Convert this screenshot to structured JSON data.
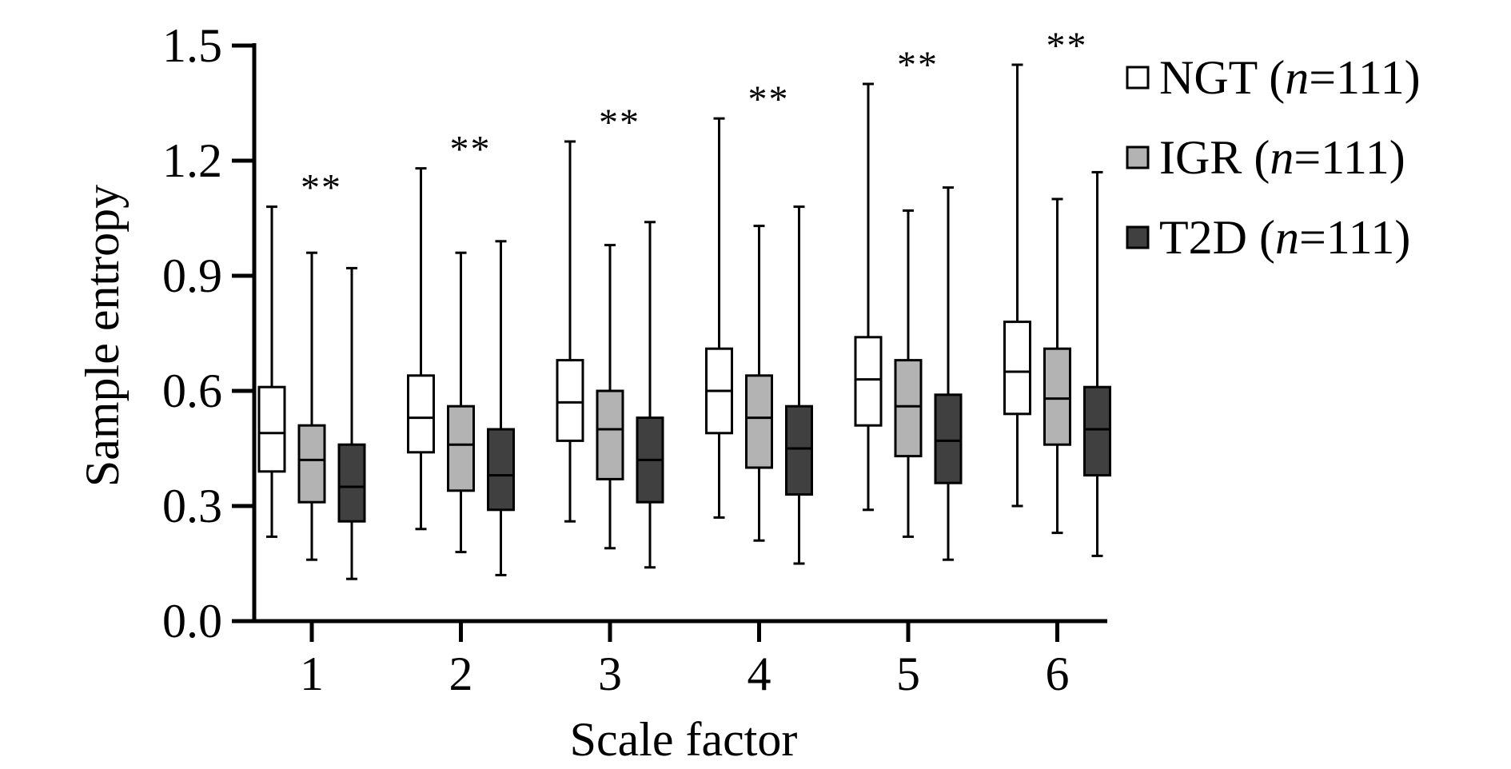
{
  "chart_data": {
    "type": "boxplot",
    "title": "",
    "xlabel": "Scale factor",
    "ylabel": "Sample entropy",
    "ylim": [
      0,
      1.5
    ],
    "yticks": [
      "0.0",
      "0.3",
      "0.6",
      "0.9",
      "1.2",
      "1.5"
    ],
    "categories": [
      "1",
      "2",
      "3",
      "4",
      "5",
      "6"
    ],
    "significance": [
      "**",
      "**",
      "**",
      "**",
      "**",
      "**"
    ],
    "legend_position": "top-right",
    "series": [
      {
        "name": "NGT",
        "n_label": "n",
        "n_value": "=111)",
        "color": "#ffffff",
        "boxes": [
          {
            "min": 0.22,
            "q1": 0.39,
            "median": 0.49,
            "q3": 0.61,
            "max": 1.08
          },
          {
            "min": 0.24,
            "q1": 0.44,
            "median": 0.53,
            "q3": 0.64,
            "max": 1.18
          },
          {
            "min": 0.26,
            "q1": 0.47,
            "median": 0.57,
            "q3": 0.68,
            "max": 1.25
          },
          {
            "min": 0.27,
            "q1": 0.49,
            "median": 0.6,
            "q3": 0.71,
            "max": 1.31
          },
          {
            "min": 0.29,
            "q1": 0.51,
            "median": 0.63,
            "q3": 0.74,
            "max": 1.4
          },
          {
            "min": 0.3,
            "q1": 0.54,
            "median": 0.65,
            "q3": 0.78,
            "max": 1.45
          }
        ]
      },
      {
        "name": "IGR",
        "n_label": "n",
        "n_value": "=111)",
        "color": "#b3b3b3",
        "boxes": [
          {
            "min": 0.16,
            "q1": 0.31,
            "median": 0.42,
            "q3": 0.51,
            "max": 0.96
          },
          {
            "min": 0.18,
            "q1": 0.34,
            "median": 0.46,
            "q3": 0.56,
            "max": 0.96
          },
          {
            "min": 0.19,
            "q1": 0.37,
            "median": 0.5,
            "q3": 0.6,
            "max": 0.98
          },
          {
            "min": 0.21,
            "q1": 0.4,
            "median": 0.53,
            "q3": 0.64,
            "max": 1.03
          },
          {
            "min": 0.22,
            "q1": 0.43,
            "median": 0.56,
            "q3": 0.68,
            "max": 1.07
          },
          {
            "min": 0.23,
            "q1": 0.46,
            "median": 0.58,
            "q3": 0.71,
            "max": 1.1
          }
        ]
      },
      {
        "name": "T2D",
        "n_label": "n",
        "n_value": "=111)",
        "color": "#404040",
        "boxes": [
          {
            "min": 0.11,
            "q1": 0.26,
            "median": 0.35,
            "q3": 0.46,
            "max": 0.92
          },
          {
            "min": 0.12,
            "q1": 0.29,
            "median": 0.38,
            "q3": 0.5,
            "max": 0.99
          },
          {
            "min": 0.14,
            "q1": 0.31,
            "median": 0.42,
            "q3": 0.53,
            "max": 1.04
          },
          {
            "min": 0.15,
            "q1": 0.33,
            "median": 0.45,
            "q3": 0.56,
            "max": 1.08
          },
          {
            "min": 0.16,
            "q1": 0.36,
            "median": 0.47,
            "q3": 0.59,
            "max": 1.13
          },
          {
            "min": 0.17,
            "q1": 0.38,
            "median": 0.5,
            "q3": 0.61,
            "max": 1.17
          }
        ]
      }
    ]
  }
}
